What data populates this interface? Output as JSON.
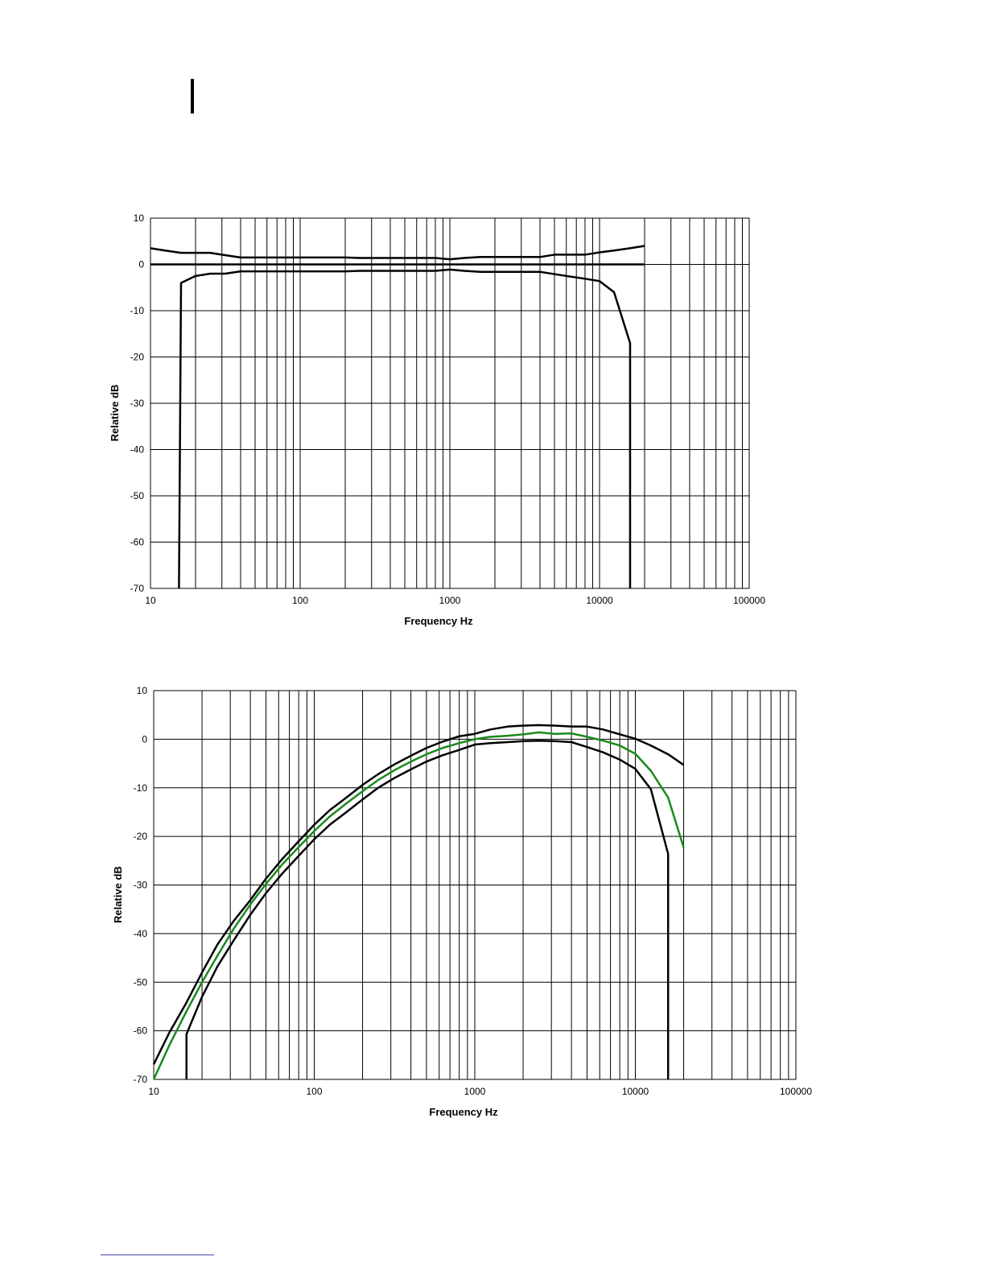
{
  "chart_data": [
    {
      "type": "line",
      "x_label": "Frequency Hz",
      "y_label": "Relative dB",
      "log_x": true,
      "grid": true,
      "xlim": [
        10,
        100000
      ],
      "xticks": [
        10,
        100,
        1000,
        10000,
        100000
      ],
      "ylim": [
        -70,
        10
      ],
      "yticks": [
        -70,
        -60,
        -50,
        -40,
        -30,
        -20,
        -10,
        0,
        10
      ],
      "series": [
        {
          "color": "#000000",
          "x": [
            10,
            12.5,
            16,
            20,
            25,
            31.5,
            40,
            50,
            63,
            80,
            100,
            125,
            160,
            200,
            250,
            315,
            400,
            500,
            630,
            800,
            1000,
            1250,
            1600,
            2000,
            2500,
            3150,
            4000,
            5000,
            6300,
            8000,
            10000,
            12500,
            16000,
            20000
          ],
          "values": [
            3.5,
            3.0,
            2.5,
            2.5,
            2.5,
            2.0,
            1.5,
            1.5,
            1.5,
            1.5,
            1.5,
            1.5,
            1.5,
            1.5,
            1.4,
            1.4,
            1.4,
            1.4,
            1.4,
            1.4,
            1.1,
            1.4,
            1.6,
            1.6,
            1.6,
            1.6,
            1.6,
            2.1,
            2.1,
            2.1,
            2.6,
            3.0,
            3.5,
            4.0
          ]
        },
        {
          "color": "#000000",
          "x": [
            10,
            20000
          ],
          "values": [
            0,
            0
          ]
        },
        {
          "color": "#000000",
          "x": [
            15.5,
            16,
            20,
            25,
            31.5,
            40,
            50,
            63,
            80,
            100,
            125,
            160,
            200,
            250,
            315,
            400,
            500,
            630,
            800,
            1000,
            1250,
            1600,
            2000,
            2500,
            3150,
            4000,
            5000,
            6300,
            8000,
            10000,
            12500,
            16000,
            16000
          ],
          "values": [
            -70,
            -4.0,
            -2.5,
            -2.0,
            -2.0,
            -1.5,
            -1.5,
            -1.5,
            -1.5,
            -1.5,
            -1.5,
            -1.5,
            -1.5,
            -1.4,
            -1.4,
            -1.4,
            -1.4,
            -1.4,
            -1.4,
            -1.1,
            -1.4,
            -1.6,
            -1.6,
            -1.6,
            -1.6,
            -1.6,
            -2.1,
            -2.6,
            -3.1,
            -3.6,
            -6.0,
            -17.0,
            -70
          ]
        }
      ]
    },
    {
      "type": "line",
      "x_label": "Frequency Hz",
      "y_label": "Relative dB",
      "log_x": true,
      "grid": true,
      "xlim": [
        10,
        100000
      ],
      "xticks": [
        10,
        100,
        1000,
        10000,
        100000
      ],
      "ylim": [
        -70,
        10
      ],
      "yticks": [
        -70,
        -60,
        -50,
        -40,
        -30,
        -20,
        -10,
        0,
        10
      ],
      "series": [
        {
          "color": "#000000",
          "x": [
            10,
            12.5,
            16,
            20,
            25,
            31.5,
            40,
            50,
            63,
            80,
            100,
            125,
            160,
            200,
            250,
            315,
            400,
            500,
            630,
            800,
            1000,
            1250,
            1600,
            2000,
            2500,
            3150,
            4000,
            5000,
            6300,
            8000,
            10000,
            12500,
            16000,
            20000
          ],
          "values": [
            -66.9,
            -60.4,
            -54.2,
            -48.0,
            -42.2,
            -37.4,
            -33.1,
            -28.7,
            -24.7,
            -21.0,
            -17.6,
            -14.6,
            -11.9,
            -9.4,
            -7.2,
            -5.2,
            -3.4,
            -1.8,
            -0.5,
            0.6,
            1.1,
            2.0,
            2.6,
            2.8,
            2.9,
            2.8,
            2.6,
            2.6,
            2.0,
            1.0,
            0.1,
            -1.3,
            -3.1,
            -5.3
          ]
        },
        {
          "color": "#1a8a1a",
          "x": [
            10,
            12.5,
            16,
            20,
            25,
            31.5,
            40,
            50,
            63,
            80,
            100,
            125,
            160,
            200,
            250,
            315,
            400,
            500,
            630,
            800,
            1000,
            1250,
            1600,
            2000,
            2500,
            3150,
            4000,
            5000,
            6300,
            8000,
            10000,
            12500,
            16000,
            20000
          ],
          "values": [
            -70,
            -63,
            -56,
            -50,
            -44.5,
            -39,
            -34,
            -29.8,
            -25.8,
            -22.2,
            -18.9,
            -15.9,
            -13.1,
            -10.7,
            -8.4,
            -6.4,
            -4.6,
            -3.1,
            -1.8,
            -0.8,
            0,
            0.5,
            0.7,
            1.0,
            1.4,
            1.1,
            1.2,
            0.5,
            -0.3,
            -1.3,
            -3.0,
            -6.5,
            -12.0,
            -22.3
          ]
        },
        {
          "color": "#000000",
          "x": [
            16,
            16,
            20,
            25,
            31.5,
            40,
            50,
            63,
            80,
            100,
            125,
            160,
            200,
            250,
            315,
            400,
            500,
            630,
            800,
            1000,
            1250,
            1600,
            2000,
            2500,
            3150,
            4000,
            5000,
            6300,
            8000,
            10000,
            12500,
            16000,
            16000
          ],
          "values": [
            -70,
            -60.7,
            -53.0,
            -46.7,
            -41.4,
            -36.1,
            -31.7,
            -27.7,
            -24.0,
            -20.6,
            -17.6,
            -14.9,
            -12.4,
            -10.0,
            -8.0,
            -6.2,
            -4.6,
            -3.3,
            -2.2,
            -1.1,
            -0.8,
            -0.6,
            -0.4,
            -0.3,
            -0.4,
            -0.6,
            -1.6,
            -2.7,
            -4.2,
            -6.1,
            -10.3,
            -23.6,
            -70
          ]
        }
      ]
    }
  ]
}
